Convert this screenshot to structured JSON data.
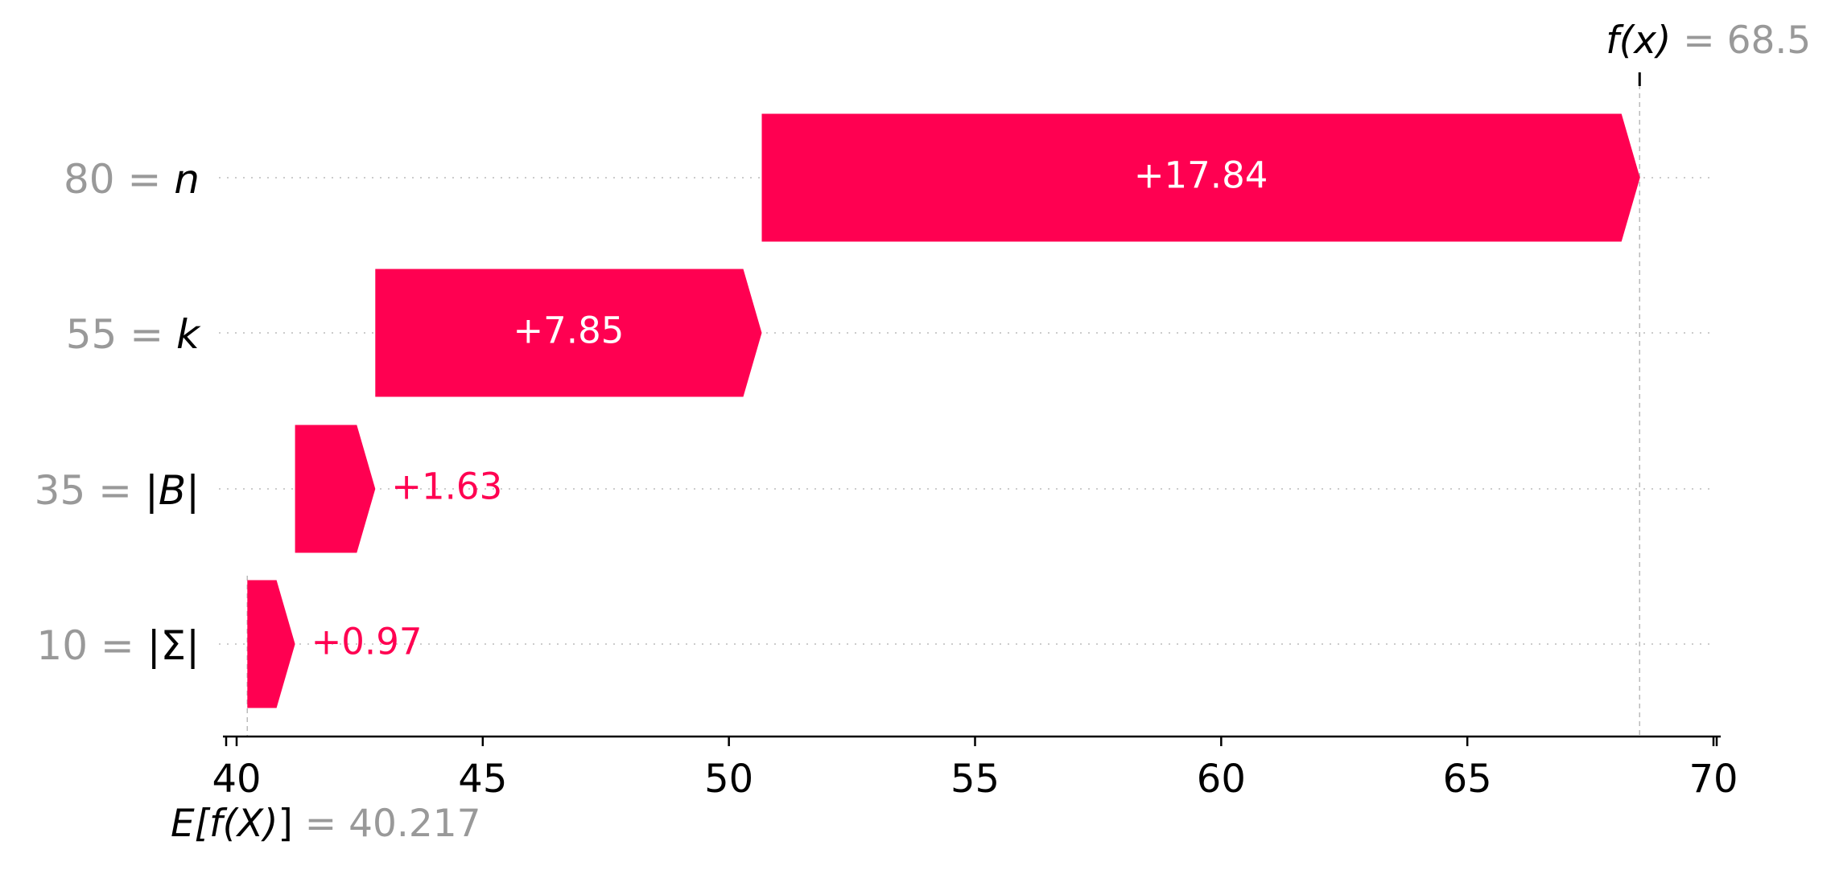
{
  "chart_data": {
    "type": "waterfall",
    "base_value": 40.217,
    "output_value": 68.5,
    "base_label": {
      "prefix": "E[",
      "func": "f",
      "arg": "(X)",
      "suffix": "]",
      "eq": " = ",
      "value": "40.217"
    },
    "output_label": {
      "func": "f",
      "arg": "(x)",
      "eq": " = ",
      "value": "68.5"
    },
    "features": [
      {
        "value": "80",
        "eq": " = ",
        "name": "n",
        "italic": true,
        "contribution": 17.84,
        "label": "+17.84",
        "label_inside": true
      },
      {
        "value": "55",
        "eq": " = ",
        "name": "k",
        "italic": true,
        "contribution": 7.85,
        "label": "+7.85",
        "label_inside": true
      },
      {
        "value": "35",
        "eq": " = ",
        "name_parts": [
          "|",
          "B",
          "|"
        ],
        "italic_part": 1,
        "contribution": 1.63,
        "label": "+1.63",
        "label_inside": false
      },
      {
        "value": "10",
        "eq": " = ",
        "name_parts": [
          "|Σ|"
        ],
        "italic_part": -1,
        "contribution": 0.97,
        "label": "+0.97",
        "label_inside": false
      }
    ],
    "xlim": [
      39.8,
      70.2
    ],
    "xticks": [
      40,
      45,
      50,
      55,
      60,
      65,
      70
    ],
    "xtick_labels": [
      "40",
      "45",
      "50",
      "55",
      "60",
      "65",
      "70"
    ],
    "colors": {
      "positive": "#ff0051",
      "feature_value": "#999999",
      "axis": "#000000",
      "gridline": "#cccccc",
      "refline": "#bbbbbb"
    }
  }
}
